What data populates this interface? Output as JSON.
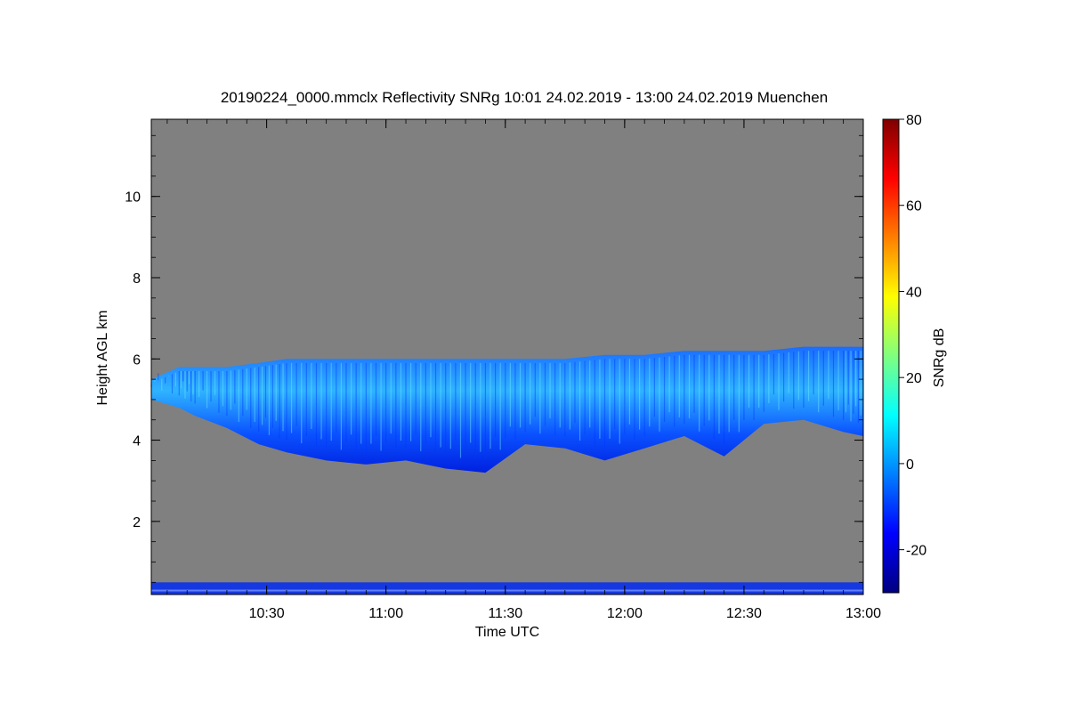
{
  "chart_data": {
    "type": "heatmap",
    "title": "20190224_0000.mmclx Reflectivity SNRg   10:01 24.02.2019 - 13:00 24.02.2019 Muenchen",
    "xlabel": "Time UTC",
    "ylabel": "Height AGL km",
    "colorbar_label": "SNRg dB",
    "x_range": [
      "10:01",
      "13:00"
    ],
    "x_ticks": [
      "10:30",
      "11:00",
      "11:30",
      "12:00",
      "12:30",
      "13:00"
    ],
    "y_range": [
      0.2,
      11.9
    ],
    "y_ticks": [
      2,
      4,
      6,
      8,
      10
    ],
    "colorbar_range": [
      -30,
      80
    ],
    "colorbar_ticks": [
      -20,
      0,
      20,
      40,
      60,
      80
    ],
    "background_color": "#808080",
    "colormap": [
      "#00007f",
      "#0000ff",
      "#007fff",
      "#00ffff",
      "#7fff7f",
      "#ffff00",
      "#ff7f00",
      "#ff0000",
      "#7f0000"
    ],
    "cloud_layer": {
      "x_minutes_after_10": [
        1,
        8,
        12,
        20,
        28,
        35,
        45,
        55,
        65,
        75,
        85,
        95,
        105,
        115,
        125,
        135,
        145,
        155,
        165,
        175,
        180
      ],
      "top_km": [
        5.5,
        5.8,
        5.8,
        5.8,
        5.9,
        6.0,
        6.0,
        6.0,
        6.0,
        6.0,
        6.0,
        6.0,
        6.0,
        6.1,
        6.1,
        6.2,
        6.2,
        6.2,
        6.3,
        6.3,
        6.3
      ],
      "base_km": [
        5.0,
        4.8,
        4.6,
        4.3,
        3.9,
        3.7,
        3.5,
        3.4,
        3.5,
        3.3,
        3.2,
        3.9,
        3.8,
        3.5,
        3.8,
        4.1,
        3.6,
        4.4,
        4.5,
        4.2,
        4.1
      ]
    },
    "near_ground_band_km": [
      0.2,
      0.5
    ]
  }
}
